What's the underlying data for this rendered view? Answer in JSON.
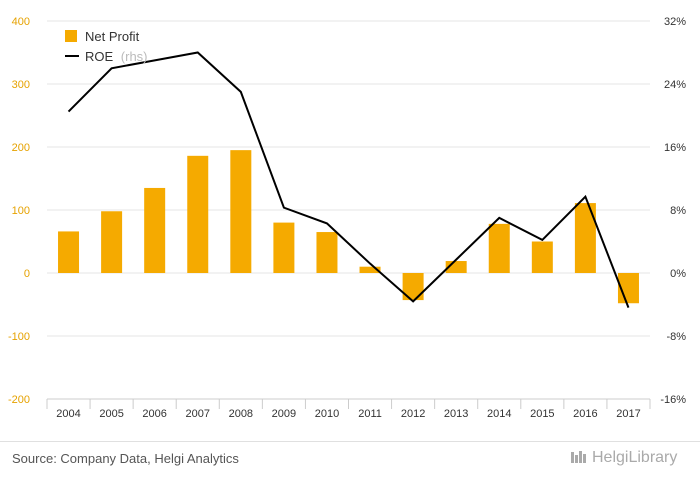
{
  "chart_data": {
    "type": "bar",
    "categories": [
      "2004",
      "2005",
      "2006",
      "2007",
      "2008",
      "2009",
      "2010",
      "2011",
      "2012",
      "2013",
      "2014",
      "2015",
      "2016",
      "2017"
    ],
    "series": [
      {
        "name": "Net Profit",
        "type": "bar",
        "axis": "left",
        "color": "#f5aa00",
        "values": [
          66,
          98,
          135,
          186,
          195,
          80,
          65,
          10,
          -43,
          19,
          78,
          50,
          111,
          -48
        ]
      },
      {
        "name": "ROE",
        "type": "line",
        "axis": "right",
        "color": "#000000",
        "unit": "%",
        "values": [
          20.5,
          26.0,
          27.0,
          28.0,
          23.0,
          8.3,
          6.3,
          1.2,
          -3.6,
          1.7,
          7.0,
          4.2,
          9.7,
          -4.4
        ]
      }
    ],
    "y_left": {
      "ylim": [
        -200,
        400
      ],
      "ticks": [
        "-200",
        "-100",
        "0",
        "100",
        "200",
        "300",
        "400"
      ]
    },
    "y_right": {
      "ylim": [
        -16,
        32
      ],
      "ticks": [
        "-16%",
        "-8%",
        "0%",
        "8%",
        "16%",
        "24%",
        "32%"
      ]
    },
    "grid": true,
    "legend_position": "top-left"
  },
  "legend": {
    "bar_label": "Net Profit",
    "line_label": "ROE",
    "line_note": "(rhs)"
  },
  "source_text": "Source: Company Data, Helgi Analytics",
  "brand": {
    "text": "HelgiLibrary"
  }
}
